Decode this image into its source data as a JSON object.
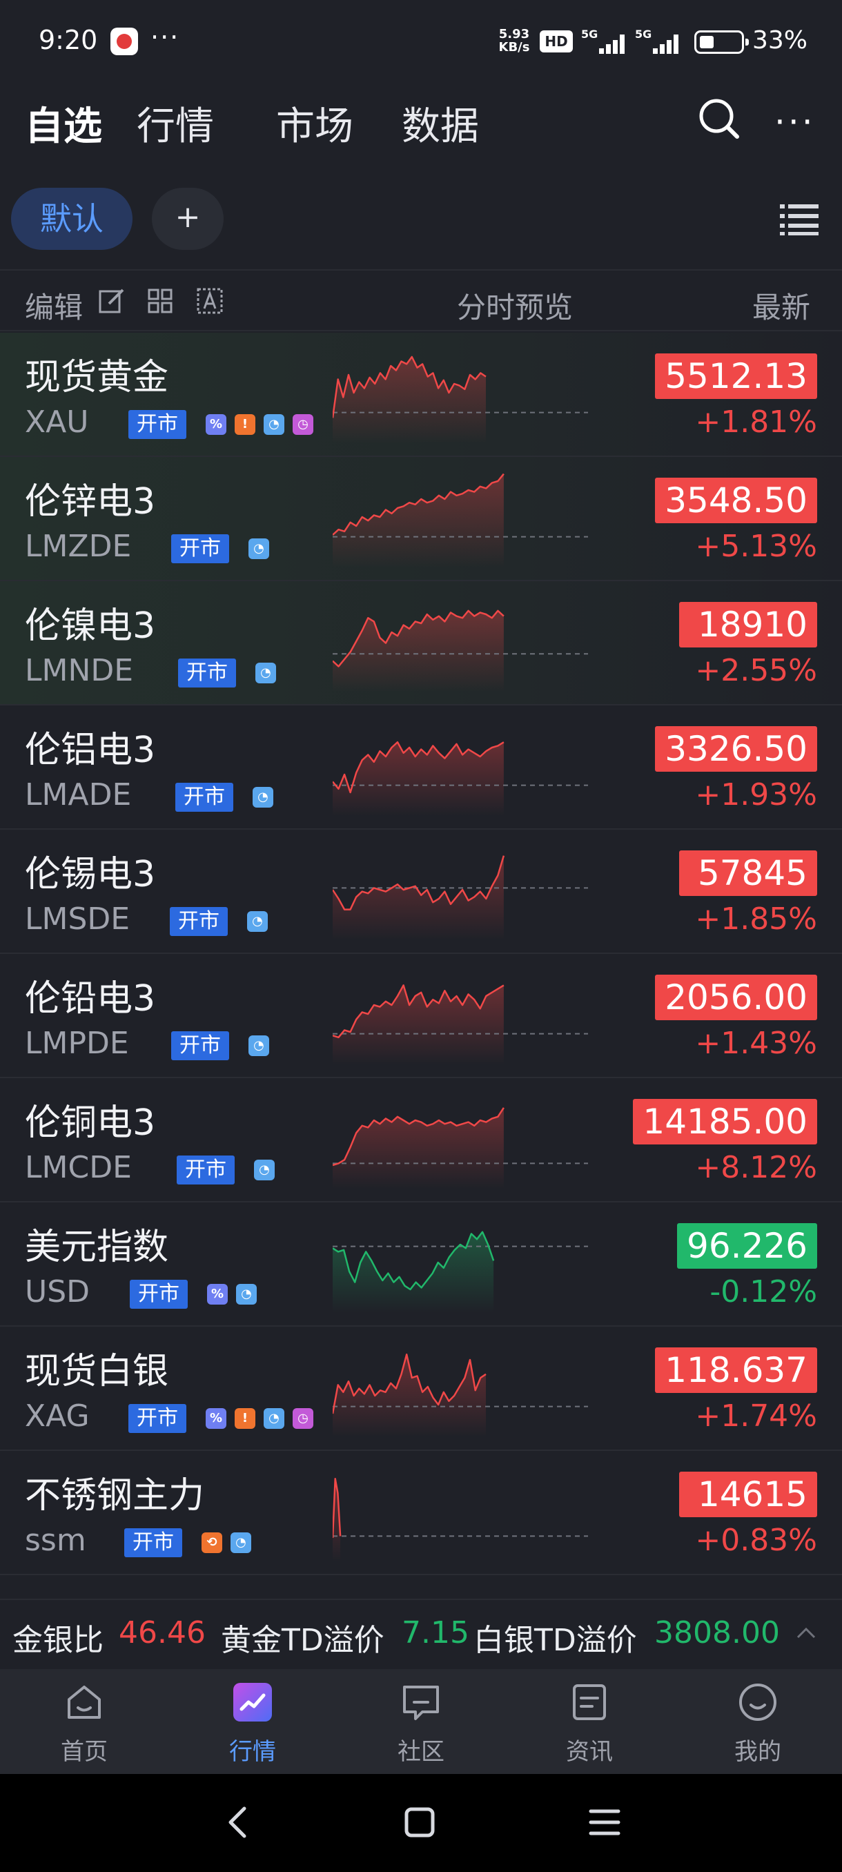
{
  "status_bar": {
    "time": "9:20",
    "more": "···",
    "net_speed_value": "5.93",
    "net_speed_unit": "KB/s",
    "hd": "HD",
    "network1": "5G",
    "network2": "5G",
    "battery_level": 0.33,
    "battery_text": "33%"
  },
  "header": {
    "tabs": [
      {
        "label": "自选",
        "active": true
      },
      {
        "label": "行情",
        "active": false
      },
      {
        "label": "市场",
        "active": false
      },
      {
        "label": "数据",
        "active": false
      }
    ],
    "more_label": "···"
  },
  "groups": {
    "active": "默认",
    "add_label": "+"
  },
  "columns": {
    "edit": "编辑",
    "preview": "分时预览",
    "latest": "最新"
  },
  "colors": {
    "up": "#f04848",
    "down": "#21b86b",
    "accent": "#5b9cff",
    "badge": "#2c6ae0"
  },
  "rows": [
    {
      "name": "现货黄金",
      "code": "XAU",
      "badge": "开市",
      "icons": [
        "percent-icon",
        "fire-icon",
        "pie-icon",
        "clock-icon"
      ],
      "price": "5512.13",
      "change": "+1.81%",
      "dir": "up",
      "highlight": true,
      "spark": {
        "len": 0.6,
        "base": 0.72,
        "points": [
          0.78,
          0.35,
          0.55,
          0.3,
          0.5,
          0.38,
          0.45,
          0.33,
          0.4,
          0.28,
          0.35,
          0.2,
          0.25,
          0.15,
          0.18,
          0.1,
          0.22,
          0.18,
          0.32,
          0.28,
          0.45,
          0.36,
          0.5,
          0.4,
          0.42,
          0.46,
          0.3,
          0.35,
          0.28,
          0.32
        ]
      }
    },
    {
      "name": "伦锌电3",
      "code": "LMZDE",
      "badge": "开市",
      "icons": [
        "pie-icon"
      ],
      "price": "3548.50",
      "change": "+5.13%",
      "dir": "up",
      "highlight": true,
      "spark": {
        "len": 0.67,
        "base": 0.72,
        "points": [
          0.7,
          0.64,
          0.66,
          0.56,
          0.6,
          0.5,
          0.54,
          0.48,
          0.5,
          0.42,
          0.46,
          0.4,
          0.38,
          0.34,
          0.36,
          0.3,
          0.34,
          0.32,
          0.26,
          0.3,
          0.22,
          0.26,
          0.24,
          0.2,
          0.22,
          0.16,
          0.18,
          0.12,
          0.1,
          0.02
        ]
      }
    },
    {
      "name": "伦镍电3",
      "code": "LMNDE",
      "badge": "开市",
      "icons": [
        "pie-icon"
      ],
      "price": "18910",
      "change": "+2.55%",
      "dir": "up",
      "highlight": true,
      "spark": {
        "len": 0.67,
        "base": 0.64,
        "points": [
          0.72,
          0.78,
          0.7,
          0.62,
          0.5,
          0.38,
          0.24,
          0.28,
          0.46,
          0.52,
          0.4,
          0.44,
          0.32,
          0.36,
          0.28,
          0.3,
          0.2,
          0.26,
          0.22,
          0.28,
          0.18,
          0.22,
          0.24,
          0.16,
          0.22,
          0.18,
          0.2,
          0.24,
          0.16,
          0.22
        ]
      }
    },
    {
      "name": "伦铝电3",
      "code": "LMADE",
      "badge": "开市",
      "icons": [
        "pie-icon"
      ],
      "price": "3326.50",
      "change": "+1.93%",
      "dir": "up",
      "highlight": false,
      "spark": {
        "len": 0.67,
        "base": 0.72,
        "points": [
          0.68,
          0.76,
          0.6,
          0.8,
          0.58,
          0.44,
          0.38,
          0.46,
          0.34,
          0.4,
          0.3,
          0.24,
          0.36,
          0.3,
          0.4,
          0.32,
          0.38,
          0.28,
          0.36,
          0.42,
          0.34,
          0.26,
          0.38,
          0.32,
          0.36,
          0.4,
          0.34,
          0.3,
          0.28,
          0.24
        ]
      }
    },
    {
      "name": "伦锡电3",
      "code": "LMSDE",
      "badge": "开市",
      "icons": [
        "pie-icon"
      ],
      "price": "57845",
      "change": "+1.85%",
      "dir": "up",
      "highlight": false,
      "spark": {
        "len": 0.67,
        "base": 0.48,
        "points": [
          0.5,
          0.6,
          0.72,
          0.72,
          0.58,
          0.52,
          0.54,
          0.48,
          0.5,
          0.52,
          0.48,
          0.44,
          0.5,
          0.48,
          0.46,
          0.56,
          0.5,
          0.64,
          0.6,
          0.52,
          0.66,
          0.58,
          0.5,
          0.62,
          0.58,
          0.52,
          0.6,
          0.46,
          0.34,
          0.12
        ]
      }
    },
    {
      "name": "伦铅电3",
      "code": "LMPDE",
      "badge": "开市",
      "icons": [
        "pie-icon"
      ],
      "price": "2056.00",
      "change": "+1.43%",
      "dir": "up",
      "highlight": false,
      "spark": {
        "len": 0.67,
        "base": 0.72,
        "points": [
          0.74,
          0.76,
          0.68,
          0.7,
          0.56,
          0.48,
          0.5,
          0.4,
          0.42,
          0.36,
          0.4,
          0.3,
          0.18,
          0.4,
          0.3,
          0.26,
          0.42,
          0.34,
          0.38,
          0.24,
          0.36,
          0.3,
          0.4,
          0.28,
          0.34,
          0.44,
          0.3,
          0.26,
          0.22,
          0.18
        ]
      }
    },
    {
      "name": "伦铜电3",
      "code": "LMCDE",
      "badge": "开市",
      "icons": [
        "pie-icon"
      ],
      "price": "14185.00",
      "change": "+8.12%",
      "dir": "up",
      "highlight": false,
      "spark": {
        "len": 0.67,
        "base": 0.78,
        "points": [
          0.8,
          0.78,
          0.74,
          0.6,
          0.44,
          0.36,
          0.38,
          0.3,
          0.34,
          0.28,
          0.32,
          0.26,
          0.3,
          0.34,
          0.3,
          0.32,
          0.36,
          0.34,
          0.3,
          0.34,
          0.32,
          0.36,
          0.34,
          0.32,
          0.36,
          0.3,
          0.32,
          0.28,
          0.26,
          0.16
        ]
      }
    },
    {
      "name": "美元指数",
      "code": "USD",
      "badge": "开市",
      "icons": [
        "percent-icon",
        "pie-icon"
      ],
      "price": "96.226",
      "change": "-0.12%",
      "dir": "down",
      "highlight": false,
      "spark": {
        "len": 0.63,
        "base": 0.32,
        "points": [
          0.34,
          0.38,
          0.36,
          0.6,
          0.72,
          0.5,
          0.38,
          0.48,
          0.6,
          0.7,
          0.62,
          0.72,
          0.66,
          0.76,
          0.8,
          0.72,
          0.78,
          0.7,
          0.62,
          0.5,
          0.56,
          0.44,
          0.36,
          0.3,
          0.34,
          0.18,
          0.24,
          0.16,
          0.3,
          0.48
        ]
      }
    },
    {
      "name": "现货白银",
      "code": "XAG",
      "badge": "开市",
      "icons": [
        "percent-icon",
        "fire-icon",
        "pie-icon",
        "clock-icon"
      ],
      "price": "118.637",
      "change": "+1.74%",
      "dir": "up",
      "highlight": false,
      "spark": {
        "len": 0.6,
        "base": 0.72,
        "points": [
          0.8,
          0.48,
          0.56,
          0.44,
          0.6,
          0.52,
          0.58,
          0.48,
          0.6,
          0.54,
          0.56,
          0.46,
          0.52,
          0.36,
          0.14,
          0.4,
          0.38,
          0.56,
          0.5,
          0.62,
          0.7,
          0.56,
          0.66,
          0.6,
          0.5,
          0.4,
          0.2,
          0.54,
          0.4,
          0.36
        ]
      }
    },
    {
      "name": "不锈钢主力",
      "code": "ssm",
      "badge": "开市",
      "icons": [
        "swap-icon",
        "pie-icon"
      ],
      "price": "14615",
      "change": "+0.83%",
      "dir": "up",
      "highlight": false,
      "spark": {
        "len": 0.03,
        "base": 0.78,
        "points": [
          0.8,
          0.14,
          0.3,
          0.78
        ]
      }
    }
  ],
  "ticker": {
    "gold_silver_label": "金银比",
    "gold_silver_value": "46.46",
    "gold_td_label": "黄金TD溢价",
    "gold_td_value": "7.15",
    "silver_td_label": "白银TD溢价",
    "silver_td_value": "3808.00"
  },
  "bottom_nav": [
    {
      "label": "首页",
      "icon": "home-icon",
      "active": false
    },
    {
      "label": "行情",
      "icon": "market-icon",
      "active": true
    },
    {
      "label": "社区",
      "icon": "community-icon",
      "active": false
    },
    {
      "label": "资讯",
      "icon": "news-icon",
      "active": false
    },
    {
      "label": "我的",
      "icon": "profile-icon",
      "active": false
    }
  ]
}
